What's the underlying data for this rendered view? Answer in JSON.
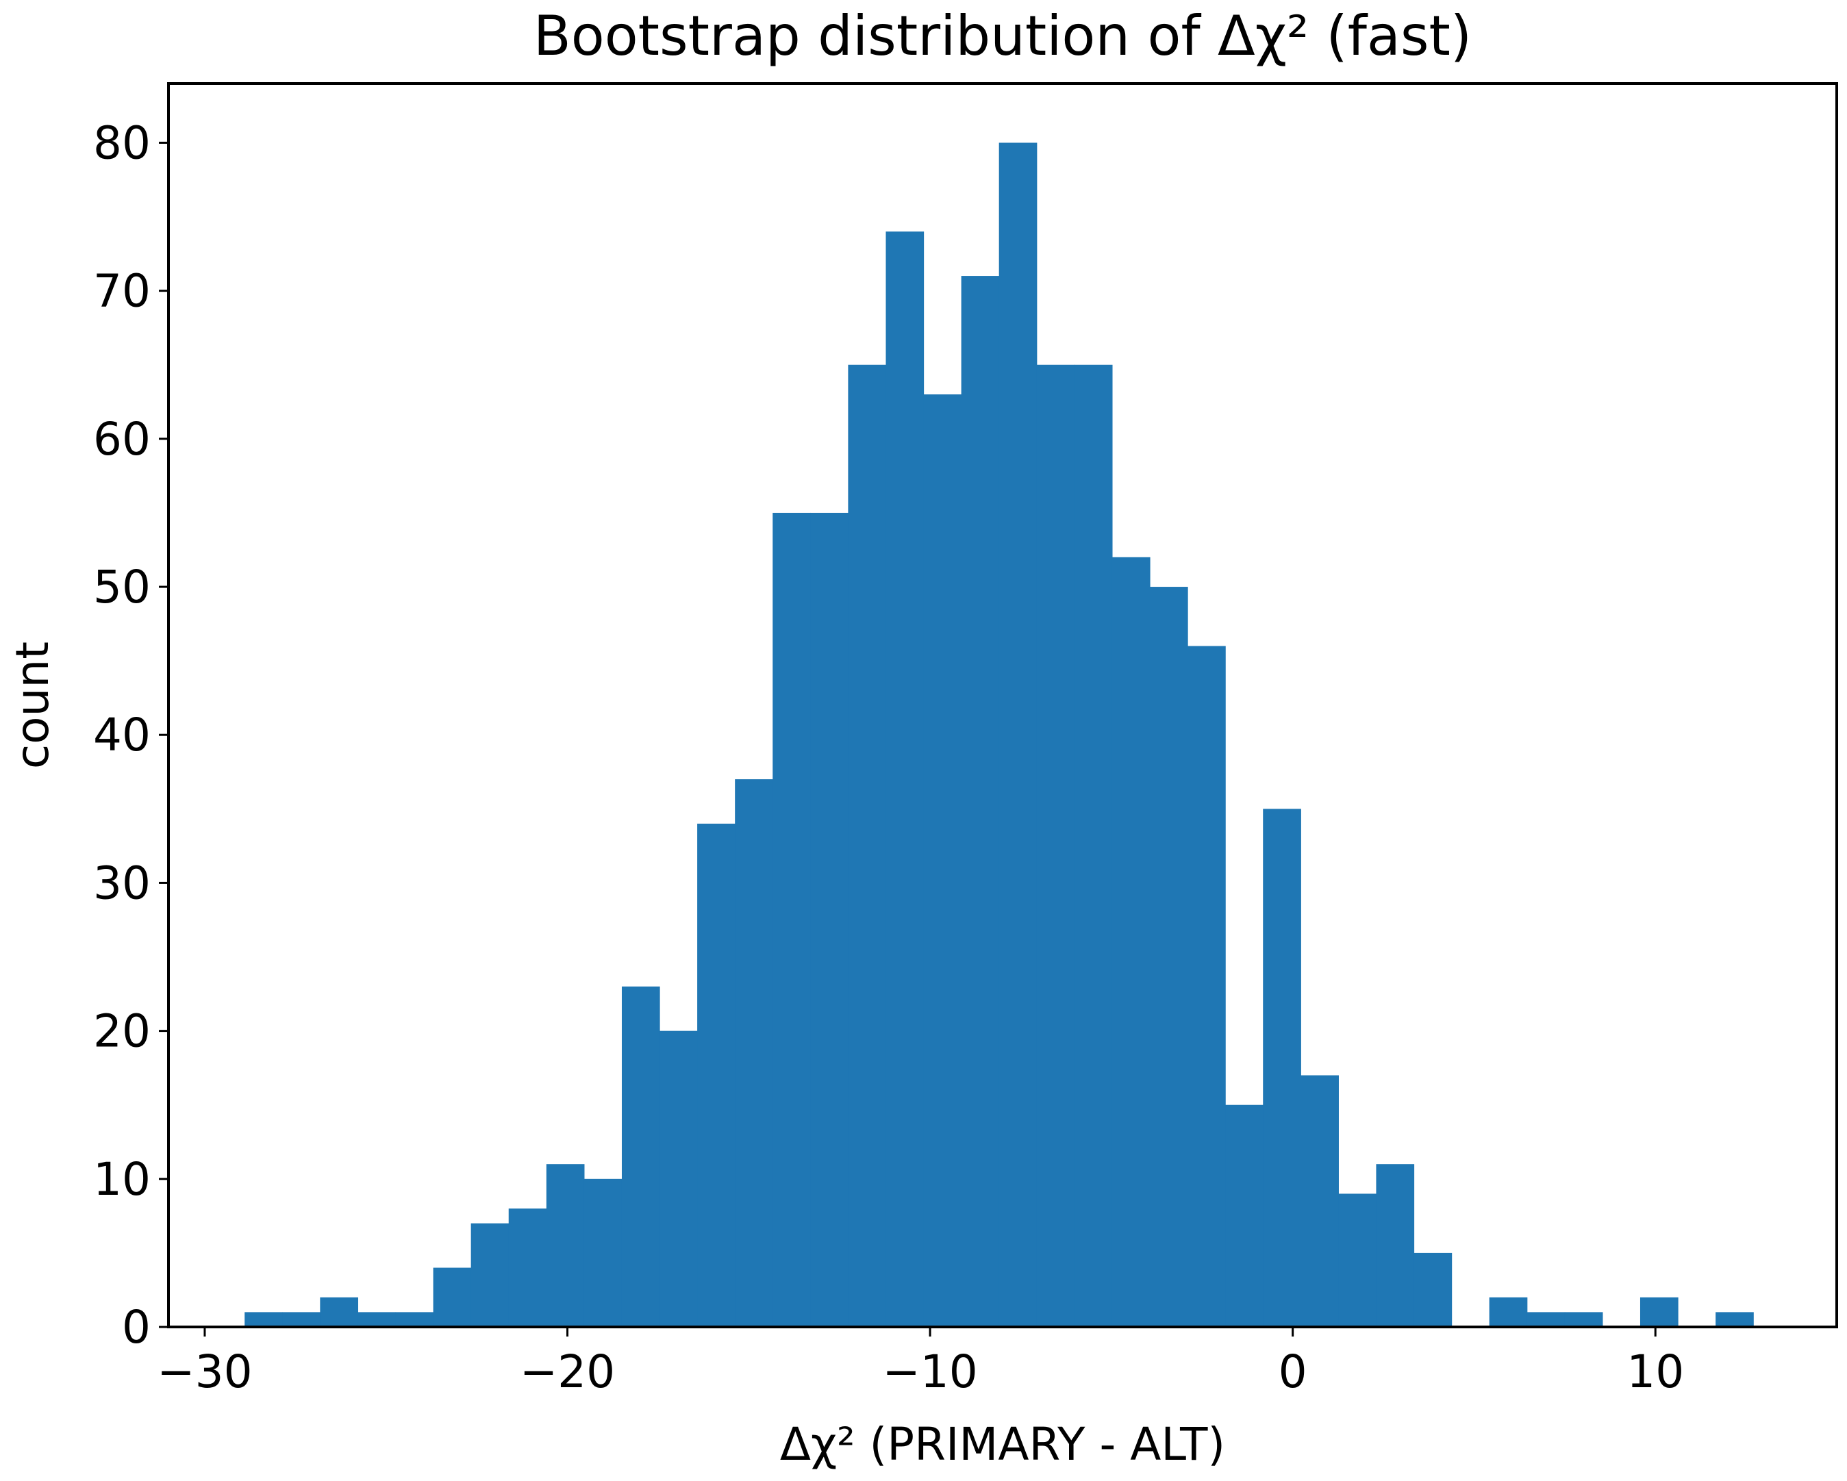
{
  "chart_data": {
    "type": "bar",
    "title": "Bootstrap distribution of Δχ² (fast)",
    "xlabel": "Δχ² (PRIMARY - ALT)",
    "ylabel": "count",
    "xlim": [
      -31,
      15
    ],
    "ylim": [
      0,
      84
    ],
    "xticks": [
      -30,
      -20,
      -10,
      0,
      10
    ],
    "xtick_labels": [
      "−30",
      "−20",
      "−10",
      "0",
      "10"
    ],
    "yticks": [
      0,
      10,
      20,
      30,
      40,
      50,
      60,
      70,
      80
    ],
    "ytick_labels": [
      "0",
      "10",
      "20",
      "30",
      "40",
      "50",
      "60",
      "70",
      "80"
    ],
    "grid": false,
    "bar_color": "#1f77b4",
    "bin_edges": [
      -28.9,
      -27.86,
      -26.82,
      -25.78,
      -24.74,
      -23.7,
      -22.66,
      -21.62,
      -20.58,
      -19.54,
      -18.5,
      -17.46,
      -16.42,
      -15.38,
      -14.34,
      -13.3,
      -12.26,
      -11.22,
      -10.18,
      -9.14,
      -8.1,
      -7.06,
      -6.02,
      -4.98,
      -3.94,
      -2.9,
      -1.86,
      -0.82,
      0.22,
      1.26,
      2.3,
      3.34,
      4.38,
      5.42,
      6.46,
      7.5,
      8.54,
      9.58,
      10.62,
      11.66,
      12.7
    ],
    "counts": [
      1,
      1,
      2,
      1,
      1,
      4,
      7,
      8,
      11,
      10,
      23,
      20,
      34,
      37,
      55,
      55,
      65,
      74,
      63,
      71,
      80,
      65,
      65,
      52,
      50,
      46,
      15,
      35,
      17,
      9,
      11,
      5,
      0,
      2,
      1,
      1,
      0,
      2,
      0,
      1
    ]
  }
}
